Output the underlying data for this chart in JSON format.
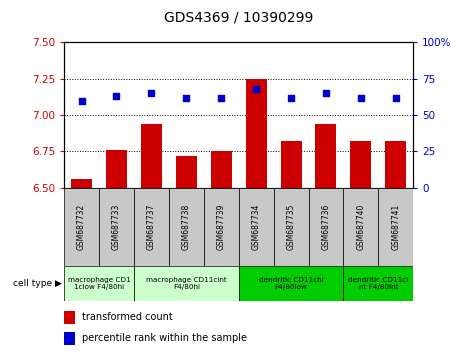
{
  "title": "GDS4369 / 10390299",
  "samples": [
    "GSM687732",
    "GSM687733",
    "GSM687737",
    "GSM687738",
    "GSM687739",
    "GSM687734",
    "GSM687735",
    "GSM687736",
    "GSM687740",
    "GSM687741"
  ],
  "bar_values": [
    6.56,
    6.76,
    6.94,
    6.72,
    6.75,
    7.25,
    6.82,
    6.94,
    6.82,
    6.82
  ],
  "scatter_values": [
    60,
    63,
    65,
    62,
    62,
    68,
    62,
    65,
    62,
    62
  ],
  "ylim_left": [
    6.5,
    7.5
  ],
  "ylim_right": [
    0,
    100
  ],
  "yticks_left": [
    6.5,
    6.75,
    7.0,
    7.25,
    7.5
  ],
  "yticks_right": [
    0,
    25,
    50,
    75,
    100
  ],
  "ytick_labels_right": [
    "0",
    "25",
    "50",
    "75",
    "100%"
  ],
  "bar_color": "#cc0000",
  "scatter_color": "#0000cc",
  "cell_type_groups": [
    {
      "label": "macrophage CD1\n1clow F4/80hi",
      "start": 0,
      "end": 2,
      "color": "#ccffcc"
    },
    {
      "label": "macrophage CD11cint\nF4/80hi",
      "start": 2,
      "end": 5,
      "color": "#ccffcc"
    },
    {
      "label": "dendritic CD11chi\nF4/80low",
      "start": 5,
      "end": 8,
      "color": "#00cc00"
    },
    {
      "label": "dendritic CD11ci\nnt F4/80int",
      "start": 8,
      "end": 10,
      "color": "#00cc00"
    }
  ],
  "cell_type_label": "cell type",
  "legend_bar_label": "transformed count",
  "legend_scatter_label": "percentile rank within the sample",
  "gsm_box_color": "#c8c8c8",
  "left_yaxis_color": "#cc0000",
  "right_yaxis_color": "#0000cc"
}
